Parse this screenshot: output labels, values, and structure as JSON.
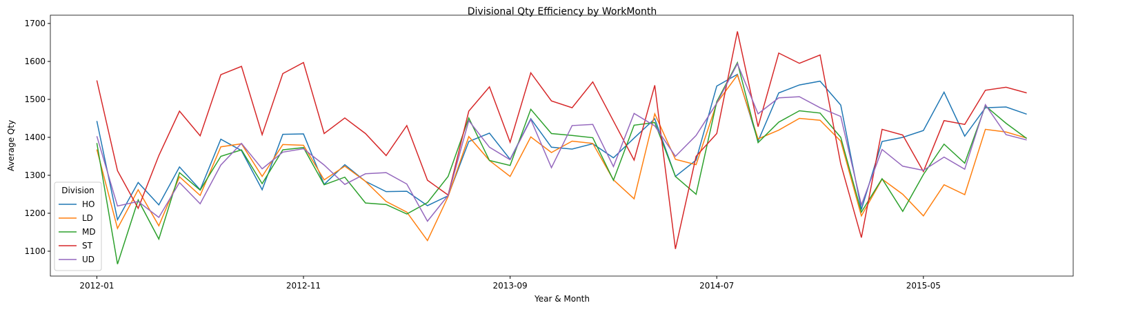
{
  "chart_data": {
    "type": "line",
    "title": "Divisional Qty Efficiency by WorkMonth",
    "xlabel": "Year & Month",
    "ylabel": "Average Qty",
    "x": [
      "2012-01",
      "2012-02",
      "2012-03",
      "2012-04",
      "2012-05",
      "2012-06",
      "2012-07",
      "2012-08",
      "2012-09",
      "2012-10",
      "2012-11",
      "2012-12",
      "2013-01",
      "2013-02",
      "2013-03",
      "2013-04",
      "2013-05",
      "2013-06",
      "2013-07",
      "2013-08",
      "2013-09",
      "2013-10",
      "2013-11",
      "2013-12",
      "2014-01",
      "2014-02",
      "2014-03",
      "2014-04",
      "2014-05",
      "2014-06",
      "2014-07",
      "2014-08",
      "2014-09",
      "2014-10",
      "2014-11",
      "2014-12",
      "2015-01",
      "2015-02",
      "2015-03",
      "2015-04",
      "2015-05",
      "2015-06",
      "2015-07",
      "2015-08",
      "2015-09",
      "2015-10"
    ],
    "xticks": [
      "2012-01",
      "2012-11",
      "2013-09",
      "2014-07",
      "2015-05"
    ],
    "ylim": [
      1034.5,
      1721.8
    ],
    "yticks": [
      1100,
      1200,
      1300,
      1400,
      1500,
      1600,
      1700
    ],
    "legend_title": "Division",
    "legend": "lower left",
    "series": [
      {
        "name": "HO",
        "color": "#1f77b4",
        "values": [
          1443,
          1183,
          1281,
          1222,
          1322,
          1262,
          1395,
          1365,
          1262,
          1408,
          1409,
          1276,
          1328,
          1284,
          1257,
          1258,
          1220,
          1246,
          1389,
          1411,
          1342,
          1449,
          1374,
          1369,
          1383,
          1346,
          1398,
          1449,
          1297,
          1340,
          1535,
          1566,
          1390,
          1517,
          1538,
          1548,
          1485,
          1210,
          1389,
          1400,
          1418,
          1519,
          1403,
          1478,
          1480,
          1461
        ]
      },
      {
        "name": "LD",
        "color": "#ff7f0e",
        "values": [
          1368,
          1160,
          1262,
          1167,
          1296,
          1247,
          1375,
          1383,
          1297,
          1381,
          1379,
          1288,
          1324,
          1284,
          1231,
          1203,
          1128,
          1244,
          1402,
          1339,
          1297,
          1401,
          1360,
          1390,
          1384,
          1288,
          1238,
          1462,
          1342,
          1328,
          1490,
          1564,
          1396,
          1419,
          1450,
          1445,
          1390,
          1193,
          1290,
          1250,
          1193,
          1275,
          1249,
          1421,
          1414,
          1398
        ]
      },
      {
        "name": "MD",
        "color": "#2ca02c",
        "values": [
          1385,
          1066,
          1235,
          1132,
          1307,
          1261,
          1350,
          1367,
          1278,
          1367,
          1373,
          1275,
          1295,
          1227,
          1223,
          1198,
          1228,
          1297,
          1451,
          1339,
          1326,
          1474,
          1410,
          1405,
          1399,
          1287,
          1432,
          1439,
          1297,
          1250,
          1494,
          1597,
          1386,
          1440,
          1470,
          1464,
          1400,
          1203,
          1291,
          1205,
          1302,
          1382,
          1332,
          1483,
          1437,
          1397
        ]
      },
      {
        "name": "ST",
        "color": "#d62728",
        "values": [
          1550,
          1312,
          1213,
          1352,
          1469,
          1404,
          1565,
          1587,
          1407,
          1568,
          1597,
          1410,
          1451,
          1410,
          1352,
          1431,
          1287,
          1248,
          1469,
          1533,
          1387,
          1570,
          1496,
          1478,
          1546,
          1443,
          1340,
          1537,
          1106,
          1350,
          1410,
          1679,
          1428,
          1622,
          1595,
          1617,
          1330,
          1136,
          1421,
          1406,
          1310,
          1444,
          1434,
          1524,
          1532,
          1517
        ]
      },
      {
        "name": "UD",
        "color": "#9467bd",
        "values": [
          1403,
          1219,
          1231,
          1189,
          1281,
          1225,
          1327,
          1384,
          1317,
          1361,
          1370,
          1327,
          1276,
          1304,
          1307,
          1277,
          1179,
          1247,
          1444,
          1374,
          1341,
          1447,
          1320,
          1431,
          1434,
          1323,
          1463,
          1430,
          1350,
          1405,
          1490,
          1594,
          1462,
          1504,
          1507,
          1478,
          1455,
          1222,
          1368,
          1324,
          1313,
          1348,
          1316,
          1486,
          1407,
          1393
        ]
      }
    ]
  }
}
